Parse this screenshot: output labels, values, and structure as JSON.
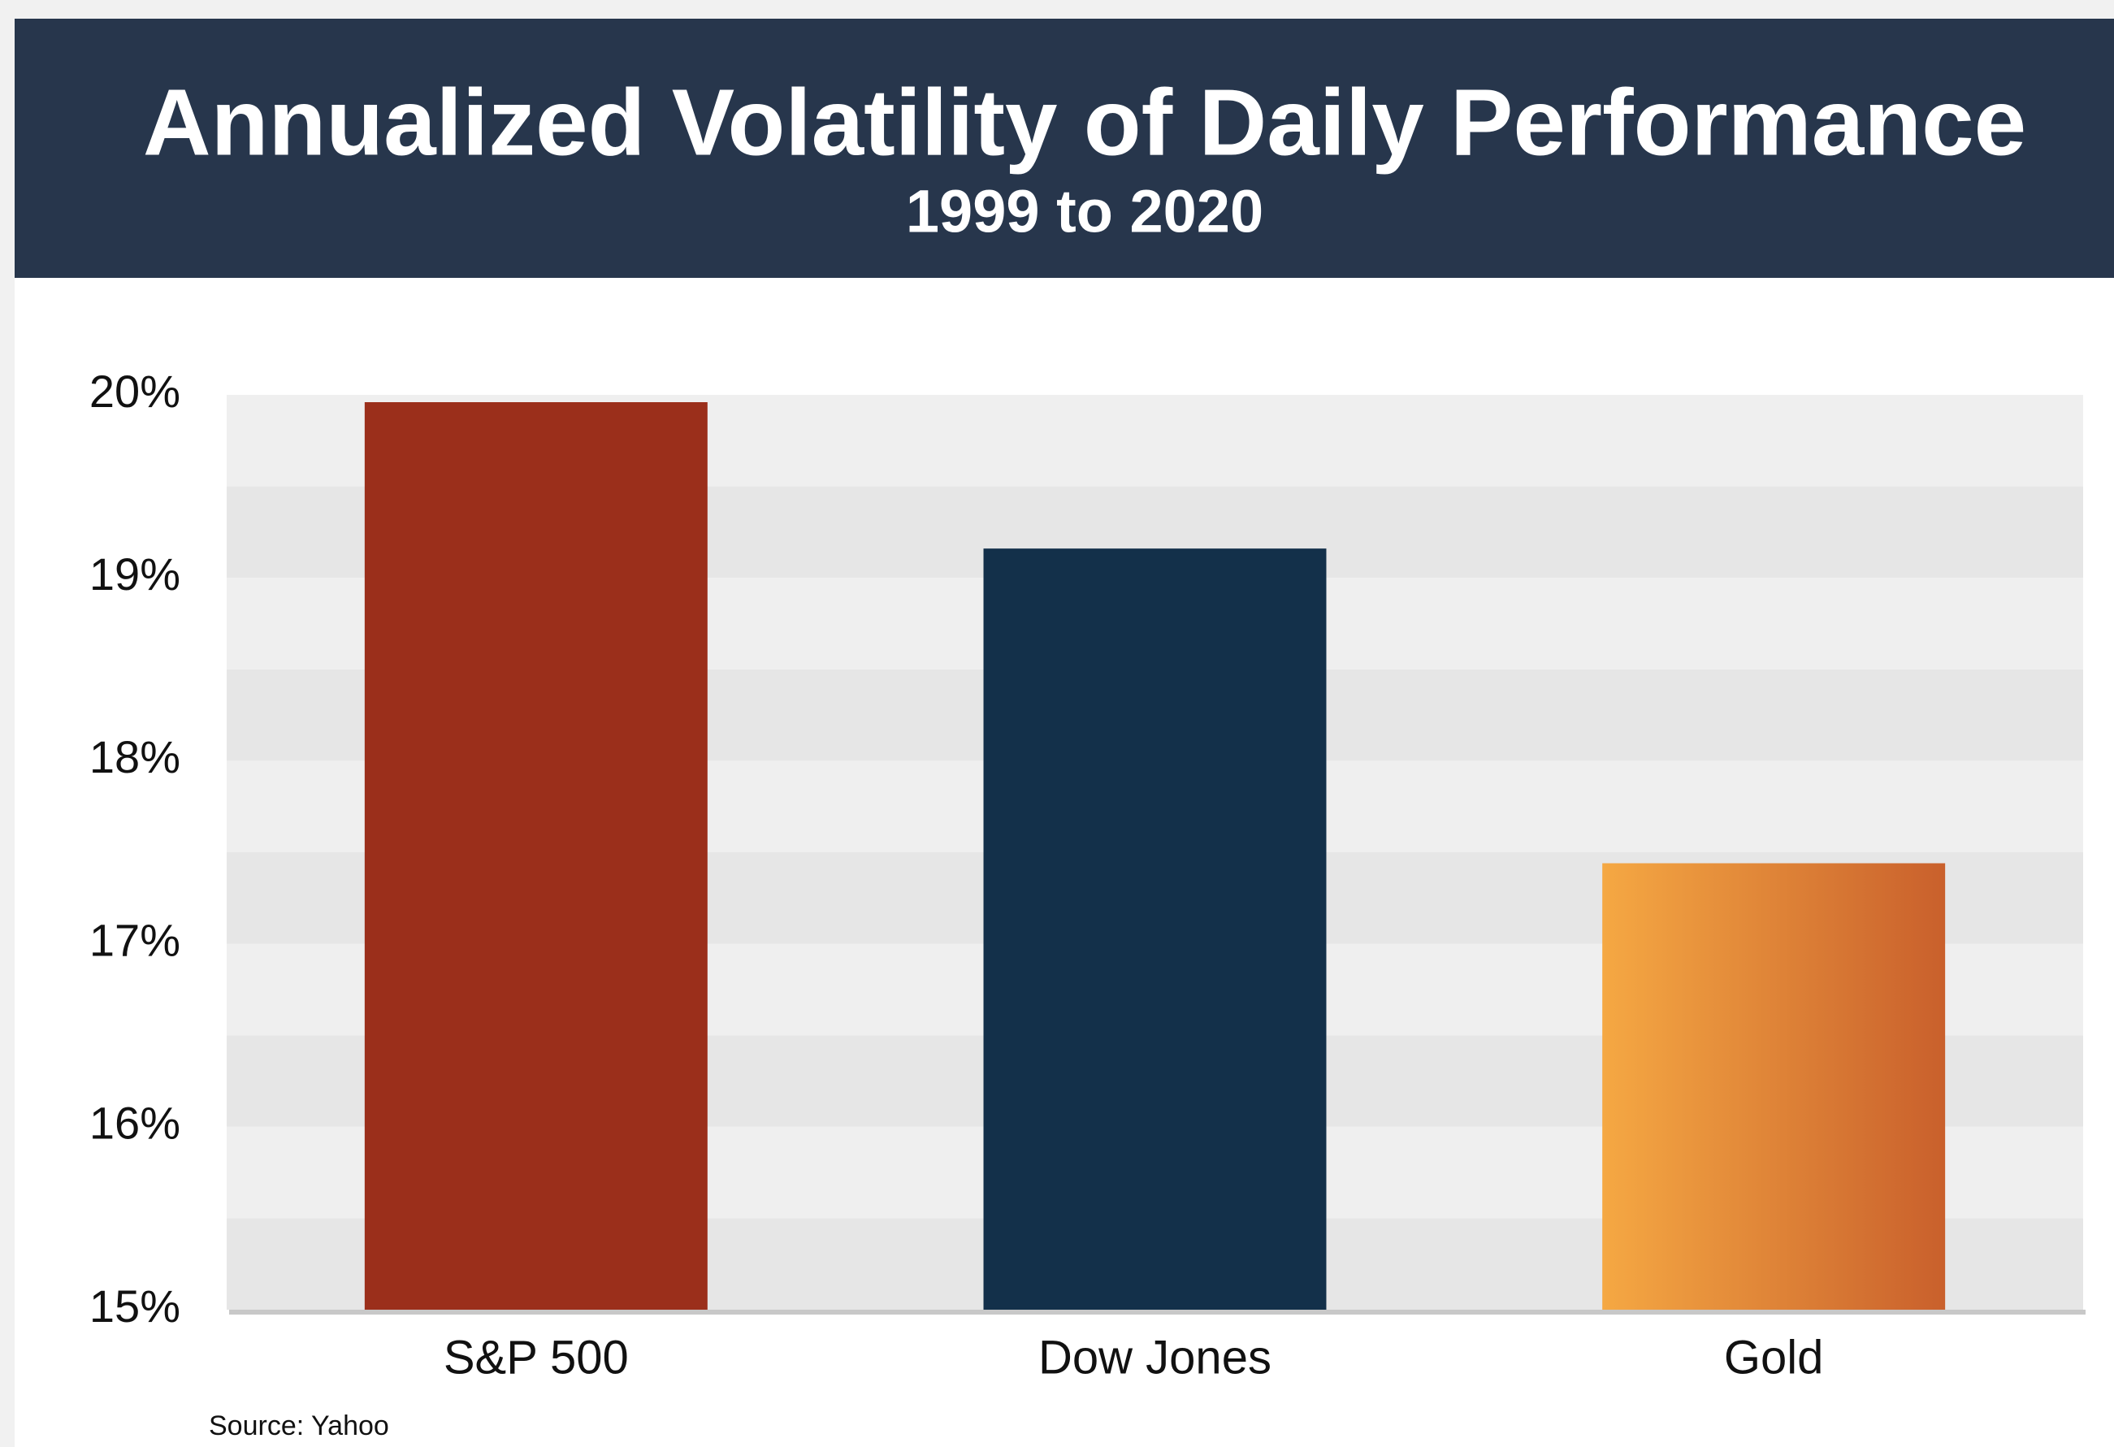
{
  "chart_data": {
    "type": "bar",
    "title": "Annualized Volatility of Daily Performance",
    "subtitle": "1999 to 2020",
    "categories": [
      "S&P 500",
      "Dow Jones",
      "Gold"
    ],
    "values": [
      19.96,
      19.16,
      17.44
    ],
    "colors": [
      "#9b2f1b",
      "#13304a",
      [
        "#f5a843",
        "#c9602c"
      ]
    ],
    "ylim": [
      15,
      20
    ],
    "yticks": [
      {
        "value": 15,
        "label": "15%"
      },
      {
        "value": 16,
        "label": "16%"
      },
      {
        "value": 17,
        "label": "17%"
      },
      {
        "value": 18,
        "label": "18%"
      },
      {
        "value": 19,
        "label": "19%"
      },
      {
        "value": 20,
        "label": "20%"
      }
    ],
    "grid": true,
    "source": "Source: Yahoo"
  }
}
